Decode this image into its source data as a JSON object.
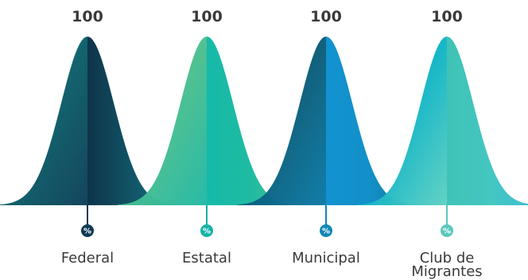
{
  "chart_data": {
    "type": "area",
    "categories": [
      "Federal",
      "Estatal",
      "Municipal",
      "Club de\nMigrantes"
    ],
    "values": [
      100,
      100,
      100,
      100
    ],
    "value_labels": [
      "100",
      "100",
      "100",
      "100"
    ],
    "marker_symbol": "%",
    "title": "",
    "xlabel": "",
    "ylabel": "",
    "grid": false,
    "series_colors": [
      {
        "left": [
          "#0f9e8e",
          "#0b5f6a",
          "#0d3f57"
        ],
        "right": [
          "#062d44",
          "#0a4f62",
          "#0c7383"
        ],
        "marker": "#0e3a54"
      },
      {
        "left": [
          "#8cc86a",
          "#4cbf8e",
          "#22b8a4"
        ],
        "right": [
          "#0eb7a6",
          "#18b99f",
          "#4bbf86"
        ],
        "marker": "#13b3a6"
      },
      {
        "left": [
          "#0a2f4d",
          "#0a5c79",
          "#0b7aa6"
        ],
        "right": [
          "#0a8fcf",
          "#0b8cc6",
          "#0b6f8f"
        ],
        "marker": "#0f86b8"
      },
      {
        "left": [
          "#089dd6",
          "#0fb4c6",
          "#5fd0c2"
        ],
        "right": [
          "#39c1b3",
          "#3ec4c0",
          "#36bcd0"
        ],
        "marker": "#5ac8bc"
      }
    ]
  }
}
